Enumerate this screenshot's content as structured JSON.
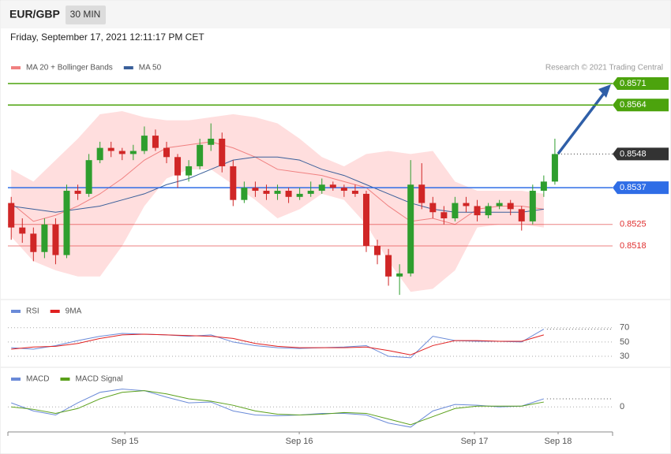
{
  "header": {
    "symbol": "EUR/GBP",
    "timeframe": "30 MIN",
    "timestamp": "Friday, September 17, 2021 12:11:17 PM CET"
  },
  "chart_data": [
    {
      "type": "candlestick",
      "credit": "Research © 2021 Trading Central",
      "x": [
        0,
        1,
        2,
        3,
        4,
        5,
        6,
        7,
        8,
        9,
        10,
        11,
        12,
        13,
        14,
        15,
        16,
        17,
        18,
        19,
        20,
        21,
        22,
        23,
        24,
        25,
        26,
        27,
        28,
        29,
        30,
        31,
        32,
        33,
        34,
        35,
        36,
        37,
        38,
        39,
        40,
        41,
        42,
        43,
        44,
        45,
        46,
        47,
        48,
        49
      ],
      "candles": [
        [
          0.8532,
          0.8534,
          0.852,
          0.8524
        ],
        [
          0.8524,
          0.8527,
          0.8519,
          0.8522
        ],
        [
          0.8522,
          0.8524,
          0.8513,
          0.8516
        ],
        [
          0.8516,
          0.8527,
          0.8514,
          0.8525
        ],
        [
          0.8525,
          0.8527,
          0.8512,
          0.8515
        ],
        [
          0.8515,
          0.8538,
          0.8514,
          0.8536
        ],
        [
          0.8536,
          0.8538,
          0.8533,
          0.8535
        ],
        [
          0.8535,
          0.8548,
          0.8534,
          0.8546
        ],
        [
          0.8546,
          0.8552,
          0.8545,
          0.855
        ],
        [
          0.855,
          0.8552,
          0.8547,
          0.8549
        ],
        [
          0.8549,
          0.855,
          0.8546,
          0.8548
        ],
        [
          0.8548,
          0.8551,
          0.8546,
          0.8549
        ],
        [
          0.8549,
          0.8557,
          0.8548,
          0.8554
        ],
        [
          0.8554,
          0.8556,
          0.8549,
          0.855
        ],
        [
          0.855,
          0.8552,
          0.8545,
          0.8547
        ],
        [
          0.8547,
          0.8548,
          0.8537,
          0.8541
        ],
        [
          0.8541,
          0.8546,
          0.8539,
          0.8544
        ],
        [
          0.8544,
          0.8553,
          0.8543,
          0.8551
        ],
        [
          0.8551,
          0.8558,
          0.8549,
          0.8553
        ],
        [
          0.8553,
          0.8555,
          0.8542,
          0.8544
        ],
        [
          0.8544,
          0.8546,
          0.8531,
          0.8533
        ],
        [
          0.8533,
          0.8539,
          0.8532,
          0.8537
        ],
        [
          0.8537,
          0.8539,
          0.8534,
          0.8536
        ],
        [
          0.8536,
          0.8538,
          0.8533,
          0.8535
        ],
        [
          0.8535,
          0.8538,
          0.8533,
          0.8536
        ],
        [
          0.8536,
          0.8537,
          0.8532,
          0.8534
        ],
        [
          0.8534,
          0.8537,
          0.8533,
          0.8535
        ],
        [
          0.8535,
          0.8539,
          0.8534,
          0.8536
        ],
        [
          0.8536,
          0.854,
          0.8535,
          0.8538
        ],
        [
          0.8538,
          0.8539,
          0.8536,
          0.8537
        ],
        [
          0.8537,
          0.8538,
          0.8534,
          0.8536
        ],
        [
          0.8536,
          0.8538,
          0.8534,
          0.8535
        ],
        [
          0.8535,
          0.8536,
          0.8516,
          0.8518
        ],
        [
          0.8518,
          0.852,
          0.8512,
          0.8515
        ],
        [
          0.8515,
          0.8517,
          0.8505,
          0.8508
        ],
        [
          0.8508,
          0.8512,
          0.8502,
          0.8509
        ],
        [
          0.8509,
          0.8546,
          0.8508,
          0.8538
        ],
        [
          0.8538,
          0.8545,
          0.853,
          0.8532
        ],
        [
          0.8532,
          0.8534,
          0.8527,
          0.8529
        ],
        [
          0.8529,
          0.8531,
          0.8525,
          0.8527
        ],
        [
          0.8527,
          0.8534,
          0.8526,
          0.8532
        ],
        [
          0.8532,
          0.8534,
          0.8529,
          0.8531
        ],
        [
          0.8531,
          0.8533,
          0.8526,
          0.8528
        ],
        [
          0.8528,
          0.8532,
          0.8527,
          0.8531
        ],
        [
          0.8531,
          0.8533,
          0.853,
          0.8532
        ],
        [
          0.8532,
          0.8533,
          0.8528,
          0.853
        ],
        [
          0.853,
          0.8531,
          0.8523,
          0.8526
        ],
        [
          0.8526,
          0.8538,
          0.8525,
          0.8536
        ],
        [
          0.8536,
          0.8541,
          0.8534,
          0.8539
        ],
        [
          0.8539,
          0.8553,
          0.8538,
          0.8548
        ]
      ],
      "up_color": "#2e9e2e",
      "down_color": "#d02626",
      "xlim": [
        -0.3,
        54.2
      ],
      "ylim": [
        0.8501,
        0.8588
      ],
      "overlays": {
        "x": [
          0,
          2,
          4,
          6,
          8,
          10,
          12,
          14,
          16,
          18,
          20,
          22,
          24,
          26,
          28,
          30,
          32,
          34,
          36,
          38,
          40,
          42,
          44,
          46,
          48
        ],
        "series": [
          {
            "name": "MA 20 + Bollinger Bands",
            "color": "#f08080",
            "band_color": "#ffdede",
            "values": [
              0.8532,
              0.8526,
              0.8528,
              0.8531,
              0.8535,
              0.854,
              0.8546,
              0.855,
              0.8551,
              0.8552,
              0.855,
              0.8547,
              0.8543,
              0.8542,
              0.8541,
              0.8539,
              0.8537,
              0.8531,
              0.8526,
              0.8527,
              0.8525,
              0.853,
              0.8531,
              0.8531,
              0.853
            ],
            "upper": [
              0.8543,
              0.8539,
              0.8546,
              0.8553,
              0.8561,
              0.8562,
              0.856,
              0.8559,
              0.8559,
              0.856,
              0.8561,
              0.856,
              0.8558,
              0.8553,
              0.8547,
              0.8544,
              0.8548,
              0.8549,
              0.8548,
              0.8549,
              0.8539,
              0.8536,
              0.8536,
              0.8536,
              0.8535
            ],
            "lower": [
              0.8521,
              0.8513,
              0.851,
              0.8508,
              0.8508,
              0.8518,
              0.8531,
              0.854,
              0.8543,
              0.8543,
              0.8538,
              0.8533,
              0.8527,
              0.853,
              0.8535,
              0.8533,
              0.8525,
              0.8513,
              0.8503,
              0.8504,
              0.851,
              0.8524,
              0.8525,
              0.8525,
              0.8524
            ]
          },
          {
            "name": "MA 50",
            "color": "#3a5f9a",
            "values": [
              0.8531,
              0.853,
              0.8529,
              0.853,
              0.8531,
              0.8533,
              0.8535,
              0.8538,
              0.854,
              0.8543,
              0.8546,
              0.8547,
              0.8547,
              0.8546,
              0.8543,
              0.8541,
              0.8538,
              0.8535,
              0.8532,
              0.853,
              0.8529,
              0.8529,
              0.8529,
              0.8529,
              0.853
            ]
          }
        ]
      },
      "levels": [
        {
          "value": 0.8571,
          "color": "#4ca30d",
          "label_style": "box",
          "line": "solid"
        },
        {
          "value": 0.8564,
          "color": "#4ca30d",
          "label_style": "box",
          "line": "solid"
        },
        {
          "value": 0.8548,
          "color": "#333333",
          "label_style": "box",
          "line": "dotted"
        },
        {
          "value": 0.8537,
          "color": "#2f6de6",
          "label_style": "box",
          "line": "solid"
        },
        {
          "value": 0.8525,
          "color": "#e03030",
          "label_style": "text",
          "line": "solid"
        },
        {
          "value": 0.8518,
          "color": "#e03030",
          "label_style": "text",
          "line": "solid"
        }
      ]
    },
    {
      "type": "line",
      "x": [
        0,
        2,
        4,
        6,
        8,
        10,
        12,
        14,
        16,
        18,
        20,
        22,
        24,
        26,
        28,
        30,
        32,
        34,
        36,
        38,
        40,
        42,
        44,
        46,
        48
      ],
      "series": [
        {
          "name": "RSI",
          "color": "#6a8ad8",
          "values": [
            42,
            40,
            45,
            52,
            58,
            62,
            61,
            60,
            58,
            60,
            50,
            45,
            42,
            41,
            42,
            43,
            45,
            30,
            28,
            58,
            52,
            51,
            51,
            50,
            68
          ]
        },
        {
          "name": "9MA",
          "color": "#e02020",
          "values": [
            40,
            43,
            44,
            48,
            55,
            60,
            61,
            60,
            59,
            58,
            55,
            48,
            44,
            42,
            42,
            42,
            43,
            38,
            32,
            45,
            52,
            52,
            51,
            51,
            60
          ]
        }
      ],
      "xlim": [
        -0.3,
        54.2
      ],
      "ylim": [
        19,
        104
      ],
      "yticks": [
        70,
        50,
        30
      ],
      "grid": true
    },
    {
      "type": "line",
      "x": [
        0,
        2,
        4,
        6,
        8,
        10,
        12,
        14,
        16,
        18,
        20,
        22,
        24,
        26,
        28,
        30,
        32,
        34,
        36,
        38,
        40,
        42,
        44,
        46,
        48
      ],
      "series": [
        {
          "name": "MACD",
          "color": "#6a8ad8",
          "values": [
            5e-05,
            -5e-05,
            -0.0001,
            5e-05,
            0.00018,
            0.00022,
            0.0002,
            0.00012,
            5e-05,
            6e-05,
            -5e-05,
            -0.0001,
            -0.00011,
            -0.0001,
            -8e-05,
            -8e-05,
            -0.0001,
            -0.0002,
            -0.00025,
            -5e-05,
            3e-05,
            2e-05,
            0,
            1e-05,
            0.0001
          ]
        },
        {
          "name": "MACD Signal",
          "color": "#5aa01a",
          "values": [
            0,
            -3e-05,
            -8e-05,
            -2e-05,
            0.0001,
            0.00018,
            0.0002,
            0.00016,
            0.0001,
            7e-05,
            2e-05,
            -5e-05,
            -9e-05,
            -0.0001,
            -9e-05,
            -7e-05,
            -8e-05,
            -0.00015,
            -0.00022,
            -0.00012,
            -2e-05,
            1e-05,
            1e-05,
            1e-05,
            6e-05
          ]
        }
      ],
      "xlim": [
        -0.3,
        54.2
      ],
      "ylim": [
        -0.00028,
        0.00045
      ],
      "yticks": [
        0
      ],
      "grid": true,
      "xticks": [
        {
          "value": 10.24,
          "label": "Sep 15"
        },
        {
          "value": 25.96,
          "label": "Sep 16"
        },
        {
          "value": 41.75,
          "label": "Sep 17"
        },
        {
          "value": 49.29,
          "label": "Sep 18"
        }
      ]
    }
  ]
}
